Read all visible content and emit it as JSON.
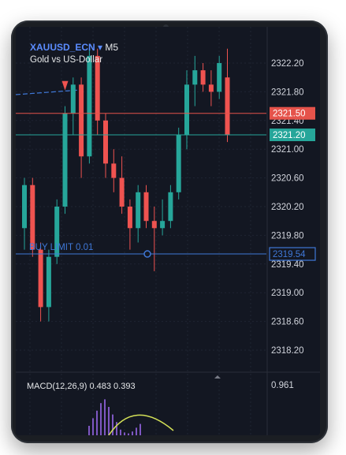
{
  "header": {
    "symbol": "XAUUSD_ECN",
    "symbol_caret": "▾",
    "timeframe": "M5",
    "description": "Gold vs US-Dollar"
  },
  "price_axis": {
    "labels": [
      "2322.20",
      "2321.80",
      "2321.40",
      "2321.00",
      "2320.60",
      "2320.20",
      "2319.80",
      "2319.40",
      "2319.00",
      "2318.60",
      "2318.20"
    ]
  },
  "price_tags": {
    "ask": {
      "value": "2321.50",
      "color": "#e5534b"
    },
    "bid": {
      "value": "2321.20",
      "color": "#26a69a"
    },
    "order": {
      "value": "2319.54",
      "color": "#3f78d8"
    }
  },
  "order_line": {
    "label": "BUY LIMIT 0.01"
  },
  "macd": {
    "label": "MACD(12,26,9) 0.483 0.393",
    "axis_value": "0.961"
  },
  "colors": {
    "background": "#131722",
    "bull": "#26a69a",
    "bear": "#ef5350",
    "histogram": "#7e57c2",
    "signal": "#d4e157"
  },
  "candles": [
    {
      "o": 2319.9,
      "h": 2320.6,
      "l": 2319.6,
      "c": 2320.5
    },
    {
      "o": 2320.5,
      "h": 2320.6,
      "l": 2319.5,
      "c": 2319.6
    },
    {
      "o": 2319.6,
      "h": 2319.7,
      "l": 2318.6,
      "c": 2318.8
    },
    {
      "o": 2318.8,
      "h": 2319.6,
      "l": 2318.6,
      "c": 2319.5
    },
    {
      "o": 2319.5,
      "h": 2320.3,
      "l": 2319.4,
      "c": 2320.2
    },
    {
      "o": 2320.2,
      "h": 2321.6,
      "l": 2320.1,
      "c": 2321.5
    },
    {
      "o": 2321.5,
      "h": 2322.0,
      "l": 2321.2,
      "c": 2321.9
    },
    {
      "o": 2321.9,
      "h": 2322.0,
      "l": 2320.6,
      "c": 2320.9
    },
    {
      "o": 2320.9,
      "h": 2322.4,
      "l": 2320.8,
      "c": 2322.3
    },
    {
      "o": 2322.3,
      "h": 2322.4,
      "l": 2321.2,
      "c": 2321.4
    },
    {
      "o": 2321.4,
      "h": 2321.5,
      "l": 2320.6,
      "c": 2320.8
    },
    {
      "o": 2320.8,
      "h": 2321.0,
      "l": 2320.4,
      "c": 2320.6
    },
    {
      "o": 2320.6,
      "h": 2320.9,
      "l": 2320.1,
      "c": 2320.2
    },
    {
      "o": 2320.2,
      "h": 2320.3,
      "l": 2319.6,
      "c": 2319.9
    },
    {
      "o": 2319.9,
      "h": 2320.5,
      "l": 2319.7,
      "c": 2320.4
    },
    {
      "o": 2320.4,
      "h": 2320.5,
      "l": 2319.9,
      "c": 2320.0
    },
    {
      "o": 2320.0,
      "h": 2320.2,
      "l": 2319.3,
      "c": 2319.9
    },
    {
      "o": 2319.9,
      "h": 2320.3,
      "l": 2319.8,
      "c": 2320.0
    },
    {
      "o": 2320.0,
      "h": 2320.5,
      "l": 2319.9,
      "c": 2320.4
    },
    {
      "o": 2320.4,
      "h": 2321.3,
      "l": 2320.3,
      "c": 2321.2
    },
    {
      "o": 2321.2,
      "h": 2322.1,
      "l": 2321.0,
      "c": 2321.9
    },
    {
      "o": 2321.9,
      "h": 2322.3,
      "l": 2321.6,
      "c": 2322.1
    },
    {
      "o": 2322.1,
      "h": 2322.2,
      "l": 2321.8,
      "c": 2321.9
    },
    {
      "o": 2321.9,
      "h": 2322.1,
      "l": 2321.6,
      "c": 2321.8
    },
    {
      "o": 2321.8,
      "h": 2322.3,
      "l": 2321.7,
      "c": 2322.2
    },
    {
      "o": 2322.0,
      "h": 2322.4,
      "l": 2321.1,
      "c": 2321.2
    }
  ],
  "histogram": [
    0.1,
    0.18,
    0.26,
    0.34,
    0.38,
    0.3,
    0.22,
    0.14,
    0.06,
    0.03,
    0.02,
    0.04,
    0.08,
    0.12
  ]
}
